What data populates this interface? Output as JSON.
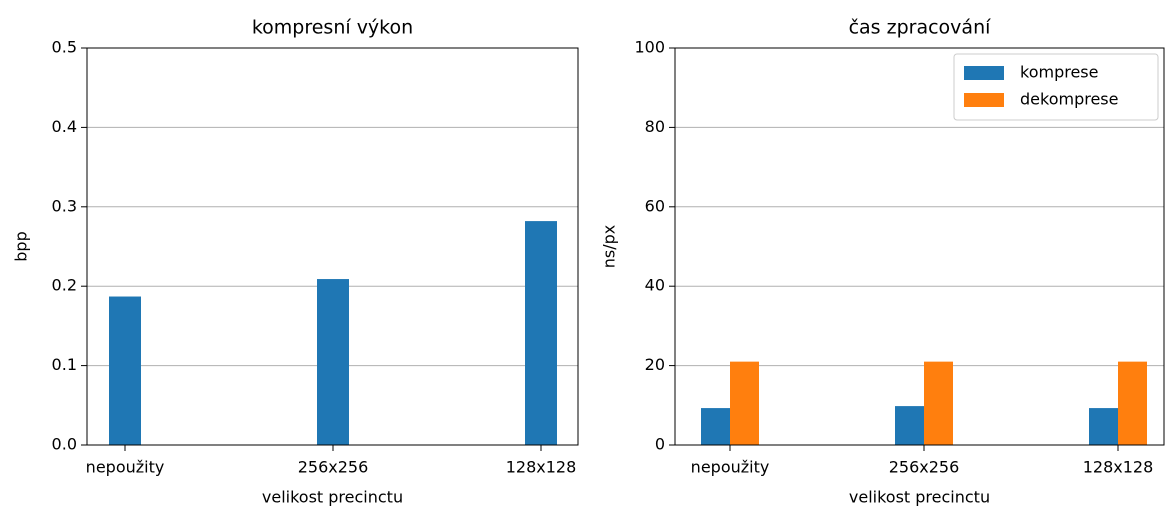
{
  "chart_data": [
    {
      "type": "bar",
      "title": "kompresní výkon",
      "xlabel": "velikost precinctu",
      "ylabel": "bpp",
      "categories": [
        "nepoužity",
        "256x256",
        "128x128"
      ],
      "series": [
        {
          "name": null,
          "color": "#1f77b4",
          "values": [
            0.187,
            0.209,
            0.282
          ]
        }
      ],
      "ylim": [
        0,
        0.5
      ],
      "yticks": [
        {
          "value": 0,
          "label": "0.0"
        },
        0.1,
        0.2,
        0.3,
        0.4,
        0.5
      ],
      "grid": true
    },
    {
      "type": "bar",
      "title": "čas zpracování",
      "xlabel": "velikost precinctu",
      "ylabel": "ns/px",
      "categories": [
        "nepoužity",
        "256x256",
        "128x128"
      ],
      "series": [
        {
          "name": "komprese",
          "color": "#1f77b4",
          "values": [
            9.3,
            9.8,
            9.3
          ]
        },
        {
          "name": "dekomprese",
          "color": "#ff7f0e",
          "values": [
            21,
            21,
            21
          ]
        }
      ],
      "ylim": [
        0,
        100
      ],
      "yticks": [
        0,
        20,
        40,
        60,
        80,
        100
      ],
      "grid": true,
      "legend": "upper right"
    }
  ]
}
